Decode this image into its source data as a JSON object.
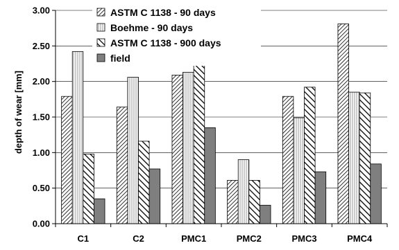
{
  "chart_data": {
    "type": "bar",
    "title": "",
    "xlabel": "",
    "ylabel": "depth of wear [mm]",
    "ylim": [
      0,
      3
    ],
    "yticks": [
      "0.00",
      "0.50",
      "1.00",
      "1.50",
      "2.00",
      "2.50",
      "3.00"
    ],
    "grid": "horizontal",
    "legend_position": "top",
    "categories": [
      "C1",
      "C2",
      "PMC1",
      "PMC2",
      "PMC3",
      "PMC4"
    ],
    "series": [
      {
        "name": "ASTM C 1138 - 90 days",
        "pattern": "diag-dense",
        "values": [
          1.79,
          1.64,
          2.09,
          0.61,
          1.79,
          2.81
        ]
      },
      {
        "name": "Boehme - 90 days",
        "pattern": "vertical",
        "values": [
          2.42,
          2.06,
          2.13,
          0.9,
          1.49,
          1.85
        ]
      },
      {
        "name": "ASTM C 1138 - 900 days",
        "pattern": "diag-wide",
        "values": [
          0.98,
          1.16,
          2.41,
          0.61,
          1.92,
          1.84
        ]
      },
      {
        "name": "field",
        "pattern": "solid",
        "color": "#7f7f7f",
        "values": [
          0.35,
          0.77,
          1.35,
          0.26,
          0.73,
          0.84
        ]
      }
    ]
  }
}
